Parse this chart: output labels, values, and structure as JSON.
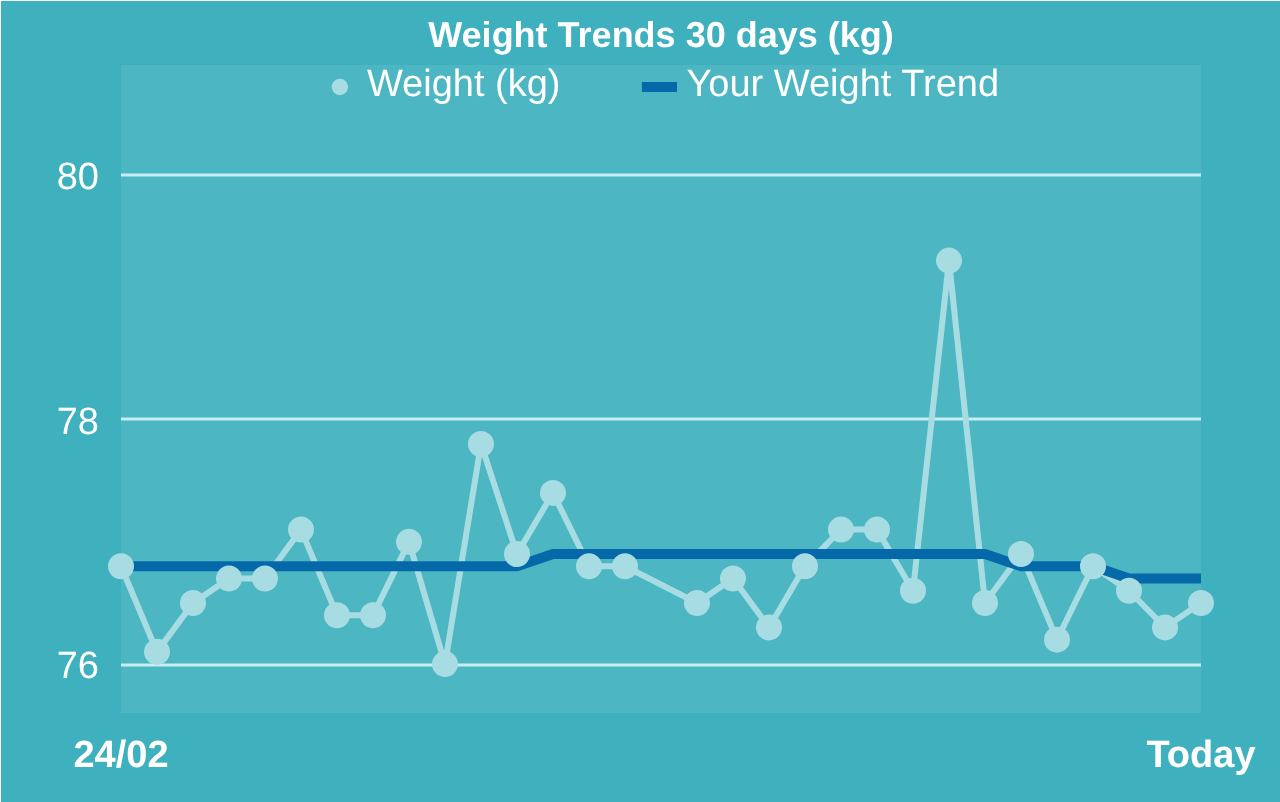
{
  "chart_data": {
    "type": "line",
    "title": "Weight Trends 30 days (kg)",
    "legend": "top",
    "grid": "y",
    "categories": [
      "24/02",
      null,
      null,
      null,
      null,
      null,
      null,
      null,
      null,
      null,
      null,
      null,
      null,
      null,
      null,
      null,
      null,
      null,
      null,
      null,
      null,
      null,
      null,
      null,
      null,
      null,
      null,
      null,
      null,
      null,
      "Today"
    ],
    "ylim": [
      75.6,
      80.9
    ],
    "yticks": [
      76,
      78,
      80
    ],
    "series": [
      {
        "name": "Weight (kg)",
        "color": "#a8dce3",
        "marker": "circle",
        "values": [
          76.8,
          76.1,
          76.5,
          76.7,
          76.7,
          77.1,
          76.4,
          76.4,
          77.0,
          76.0,
          77.8,
          76.9,
          77.4,
          76.8,
          76.8,
          null,
          76.5,
          76.7,
          76.3,
          76.8,
          77.1,
          77.1,
          76.6,
          79.3,
          76.5,
          76.9,
          76.2,
          76.8,
          76.6,
          76.3,
          76.5
        ]
      },
      {
        "name": "Your Weight Trend",
        "color": "#0568a8",
        "marker": "none",
        "values": [
          76.8,
          76.8,
          76.8,
          76.8,
          76.8,
          76.8,
          76.8,
          76.8,
          76.8,
          76.8,
          76.8,
          76.8,
          76.9,
          76.9,
          76.9,
          76.9,
          76.9,
          76.9,
          76.9,
          76.9,
          76.9,
          76.9,
          76.9,
          76.9,
          76.9,
          76.8,
          76.8,
          76.8,
          76.7,
          76.7,
          76.7
        ]
      }
    ]
  }
}
